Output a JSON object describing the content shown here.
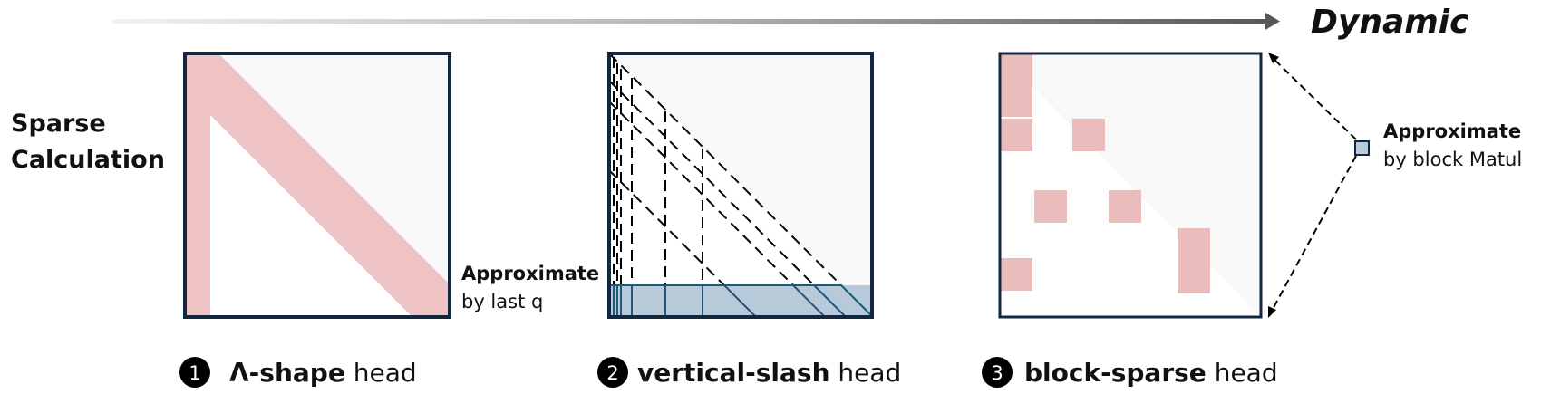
{
  "header": {
    "dynamic_label": "Dynamic"
  },
  "left_label": {
    "line1": "Sparse",
    "line2": "Calculation"
  },
  "panels": [
    {
      "number": "1",
      "name_bold": "Λ-shape",
      "name_rest": " head"
    },
    {
      "number": "2",
      "name_bold": "vertical-slash",
      "name_rest": " head",
      "annotation": {
        "bold": "Approximate",
        "rest": "by last q"
      }
    },
    {
      "number": "3",
      "name_bold": "block-sparse",
      "name_rest": " head",
      "annotation": {
        "bold": "Approximate",
        "rest": "by block Matul"
      }
    }
  ],
  "colors": {
    "frame": "#13263f",
    "sparse_fill": "#efc3c3",
    "block_fill": "#ebbcbc",
    "lastq_fill": "#b7cad9",
    "lastq_stroke": "#22577a",
    "bg_light": "#f8f8f8",
    "arrow_dark": "#5a5a5a"
  }
}
